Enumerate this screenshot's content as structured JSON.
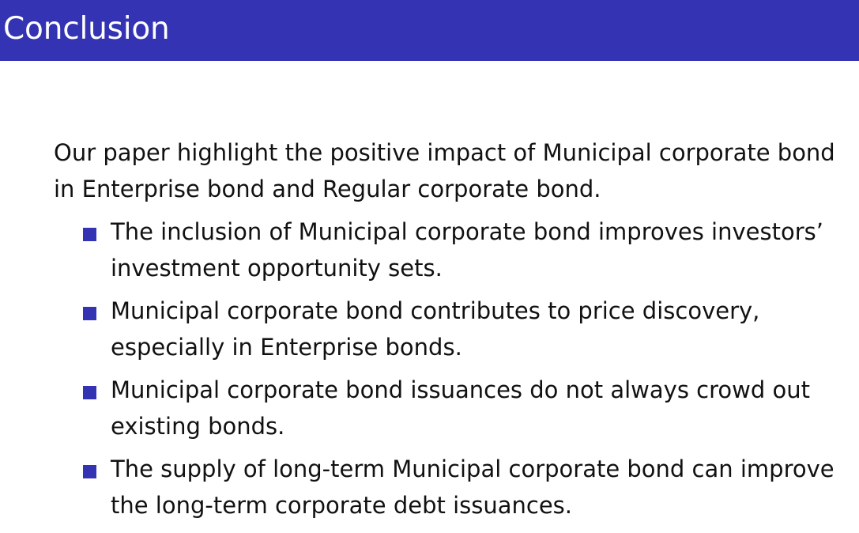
{
  "slide": {
    "title": "Conclusion",
    "intro": "Our paper highlight the positive impact of Municipal corporate bond in Enterprise bond and Regular corporate bond.",
    "bullets": [
      {
        "text": "The inclusion of Municipal corporate bond improves investors’ investment opportunity sets."
      },
      {
        "text": "Municipal corporate bond contributes to price discovery, especially in Enterprise bonds."
      },
      {
        "text": "Municipal corporate bond issuances do not always crowd out existing bonds."
      },
      {
        "text": "The supply of long-term Municipal corporate bond can improve the long-term corporate debt issuances."
      }
    ]
  },
  "colors": {
    "header_background": "#3333b3",
    "header_text": "#ffffff",
    "bullet_marker": "#3333b3",
    "body_text": "#111111"
  },
  "icons": {
    "bullet": "square-bullet-icon"
  }
}
